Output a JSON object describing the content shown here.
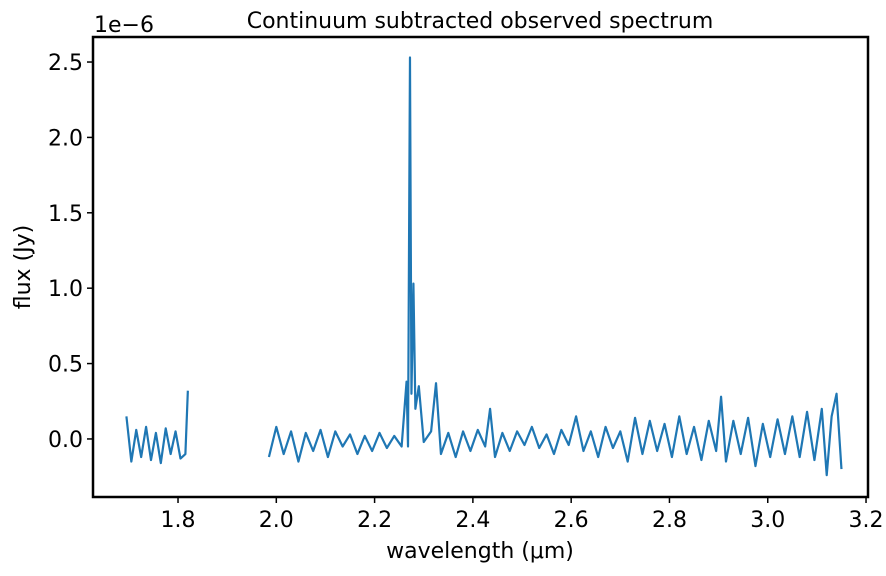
{
  "chart_data": {
    "type": "line",
    "title": "Continuum subtracted observed spectrum",
    "x_label": "wavelength (μm)",
    "y_label": "flux (Jy)",
    "y_offset_label": "1e−6",
    "xlim": [
      1.627,
      3.204
    ],
    "ylim": [
      -0.385,
      2.666
    ],
    "xticks": [
      1.8,
      {
        "value": 2,
        "label": "2.0"
      },
      2.2,
      2.4,
      2.6,
      2.8,
      {
        "value": 3,
        "label": "3.0"
      },
      3.2
    ],
    "yticks": [
      {
        "value": 0,
        "label": "0.0"
      },
      0.5,
      {
        "value": 1,
        "label": "1.0"
      },
      1.5,
      {
        "value": 2,
        "label": "2.0"
      },
      2.5
    ],
    "series": [
      {
        "color": "#1f77b4",
        "x": [
          1.695,
          1.705,
          1.715,
          1.725,
          1.735,
          1.745,
          1.755,
          1.765,
          1.775,
          1.785,
          1.795,
          1.805,
          1.815,
          1.82,
          1.9,
          1.985,
          2.0,
          2.015,
          2.03,
          2.045,
          2.06,
          2.075,
          2.09,
          2.105,
          2.12,
          2.135,
          2.15,
          2.165,
          2.18,
          2.195,
          2.21,
          2.225,
          2.24,
          2.255,
          2.265,
          2.268,
          2.272,
          2.275,
          2.279,
          2.283,
          2.29,
          2.3,
          2.315,
          2.325,
          2.335,
          2.35,
          2.365,
          2.38,
          2.395,
          2.41,
          2.425,
          2.435,
          2.445,
          2.46,
          2.475,
          2.49,
          2.505,
          2.52,
          2.535,
          2.55,
          2.565,
          2.58,
          2.595,
          2.61,
          2.625,
          2.64,
          2.655,
          2.67,
          2.685,
          2.7,
          2.715,
          2.73,
          2.745,
          2.76,
          2.775,
          2.79,
          2.805,
          2.82,
          2.835,
          2.85,
          2.865,
          2.88,
          2.895,
          2.905,
          2.915,
          2.93,
          2.945,
          2.96,
          2.975,
          2.99,
          3.005,
          3.02,
          3.035,
          3.05,
          3.065,
          3.08,
          3.095,
          3.11,
          3.12,
          3.13,
          3.14,
          3.15
        ],
        "values": [
          0.15,
          -0.15,
          0.06,
          -0.12,
          0.08,
          -0.14,
          0.04,
          -0.16,
          0.07,
          -0.1,
          0.05,
          -0.13,
          -0.1,
          0.32,
          null,
          -0.12,
          0.08,
          -0.1,
          0.05,
          -0.15,
          0.04,
          -0.08,
          0.06,
          -0.12,
          0.05,
          -0.05,
          0.03,
          -0.1,
          0.02,
          -0.08,
          0.04,
          -0.06,
          0.02,
          -0.05,
          0.38,
          -0.05,
          2.53,
          0.3,
          1.03,
          0.2,
          0.35,
          -0.02,
          0.05,
          0.37,
          -0.1,
          0.04,
          -0.12,
          0.05,
          -0.08,
          0.06,
          -0.05,
          0.2,
          -0.12,
          0.04,
          -0.08,
          0.05,
          -0.04,
          0.08,
          -0.06,
          0.03,
          -0.1,
          0.06,
          -0.04,
          0.15,
          -0.08,
          0.05,
          -0.12,
          0.08,
          -0.06,
          0.05,
          -0.15,
          0.14,
          -0.1,
          0.12,
          -0.08,
          0.1,
          -0.12,
          0.15,
          -0.1,
          0.08,
          -0.14,
          0.12,
          -0.08,
          0.28,
          -0.15,
          0.12,
          -0.1,
          0.14,
          -0.18,
          0.1,
          -0.12,
          0.13,
          -0.1,
          0.15,
          -0.12,
          0.18,
          -0.14,
          0.2,
          -0.24,
          0.15,
          0.3,
          -0.2
        ]
      }
    ]
  }
}
